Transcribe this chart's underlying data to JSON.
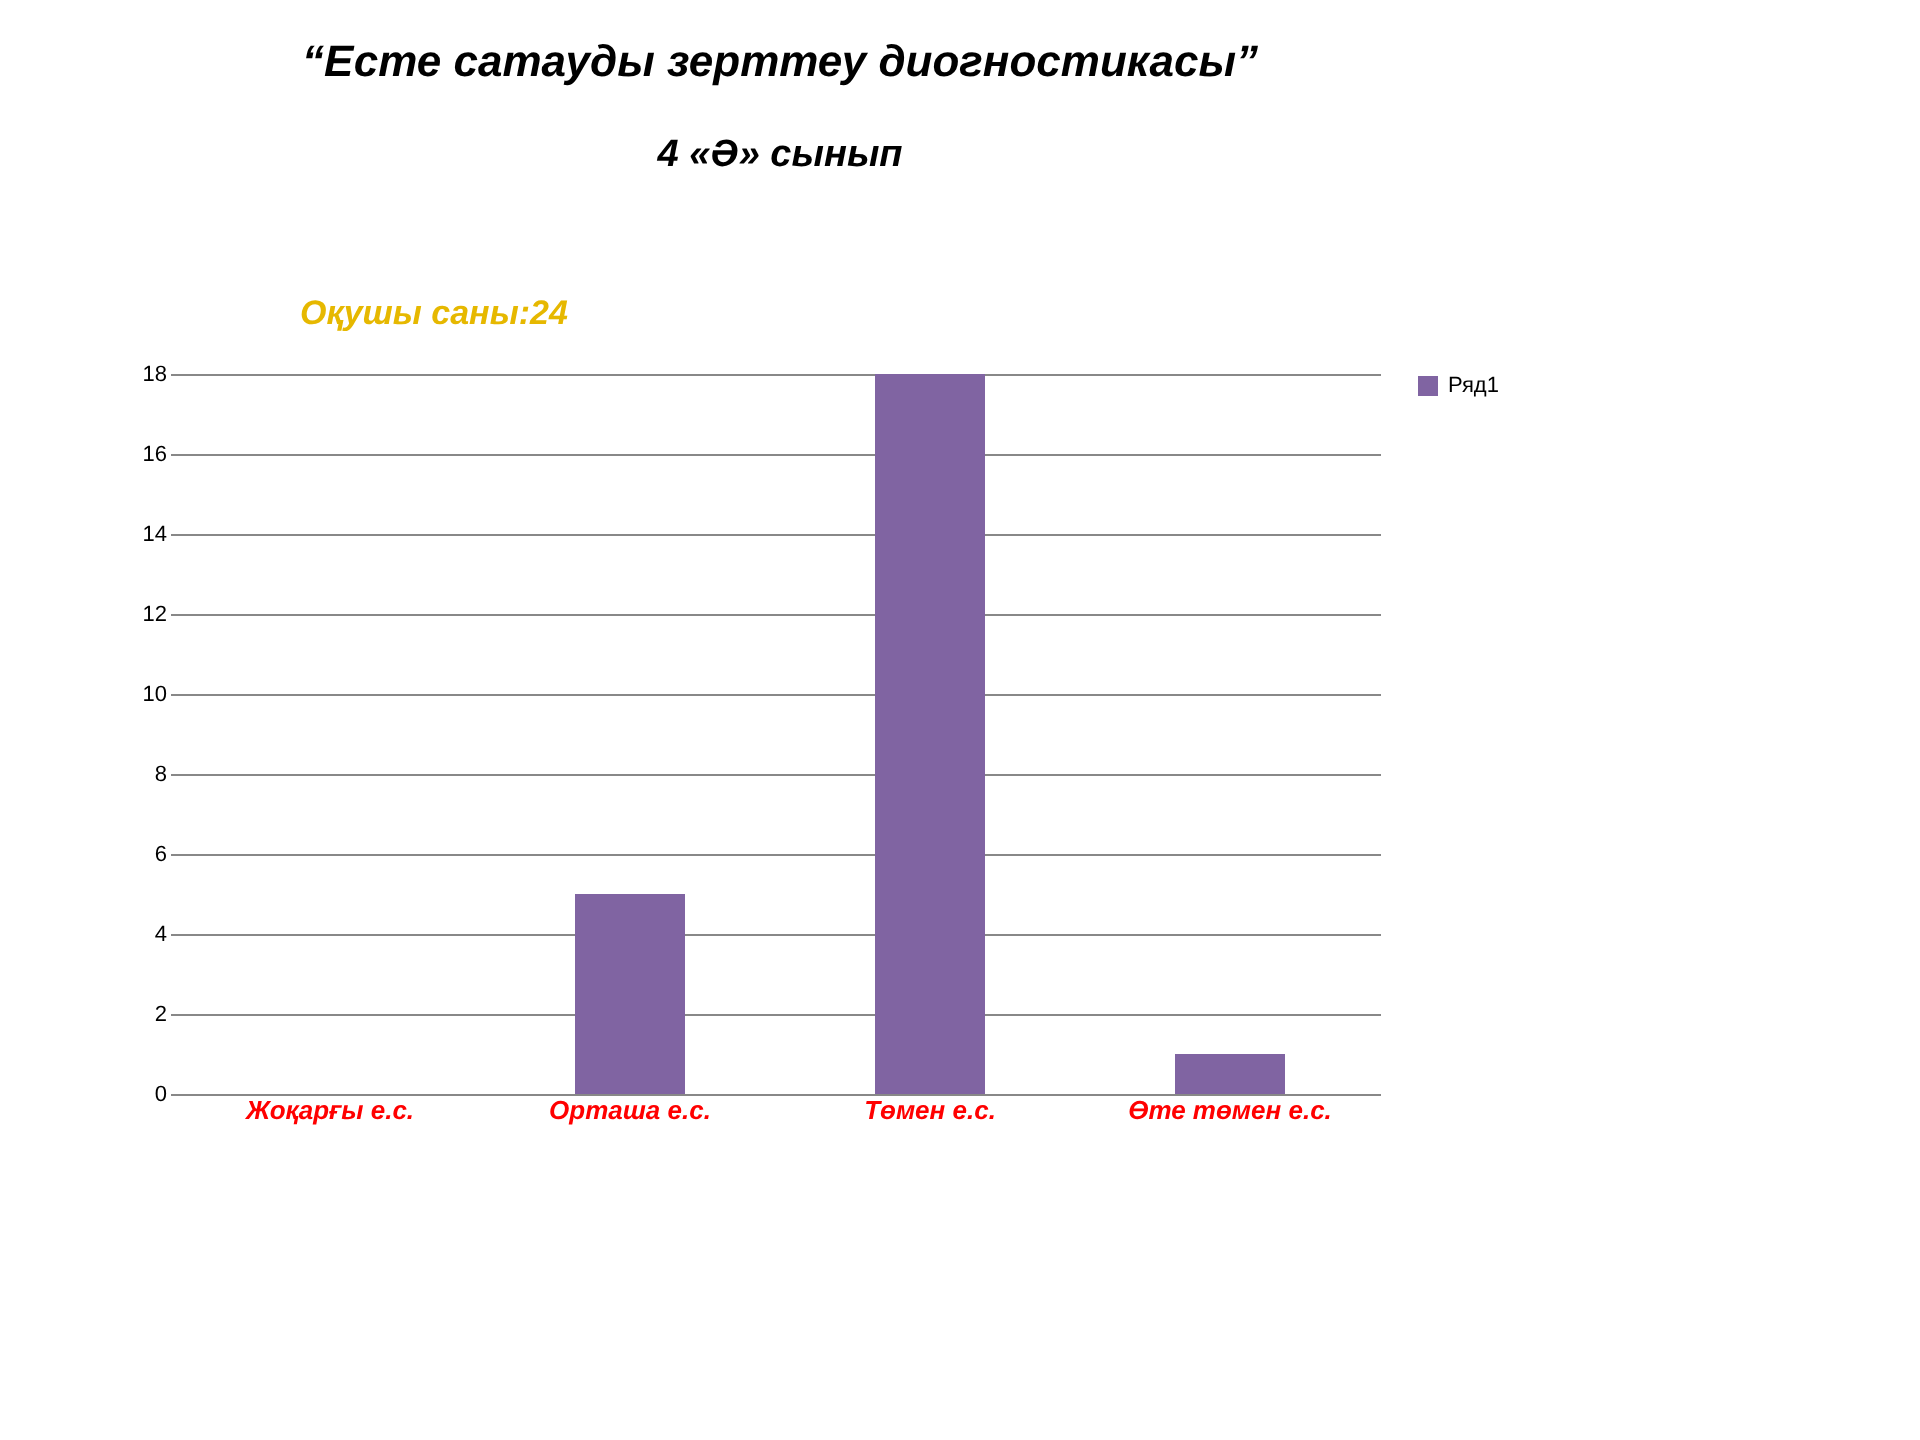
{
  "chart_data": {
    "type": "bar",
    "title": "“Есте сатауды зерттеу диогностикасы”",
    "subtitle": "4 «Ә» сынып",
    "annotations": [
      "Оқушы  саны:24"
    ],
    "categories": [
      "Жоқарғы е.с.",
      "Орташа е.с.",
      "Төмен е.с.",
      "Өте төмен е.с."
    ],
    "series": [
      {
        "name": "Ряд1",
        "color": "#8064a2",
        "values": [
          0,
          5,
          18,
          1
        ]
      }
    ],
    "ylim": [
      0,
      18
    ],
    "yticks": [
      0,
      2,
      4,
      6,
      8,
      10,
      12,
      14,
      16,
      18
    ],
    "grid": "y",
    "legend": "right"
  }
}
